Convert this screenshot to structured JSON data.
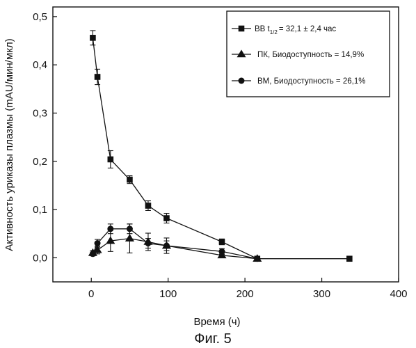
{
  "figure": {
    "caption": "Фиг. 5"
  },
  "chart_data": {
    "type": "line",
    "xlabel": "Время (ч)",
    "ylabel": "Активность уриказы плазмы (mAU/мин/мкл)",
    "xlim": [
      -50,
      400
    ],
    "ylim": [
      -0.05,
      0.52
    ],
    "xticks": [
      0,
      100,
      200,
      300,
      400
    ],
    "xtick_labels": [
      "0",
      "100",
      "200",
      "300",
      "400"
    ],
    "yticks": [
      0.0,
      0.1,
      0.2,
      0.3,
      0.4,
      0.5
    ],
    "ytick_labels": [
      "0,0",
      "0,1",
      "0,2",
      "0,3",
      "0,4",
      "0,5"
    ],
    "grid": false,
    "legend_position": "top-right",
    "series": [
      {
        "name": "ВВ t1/2 = 32,1 ± 2,4 час",
        "legend_main": "ВВ t",
        "legend_sub": "1/2",
        "legend_rest": "= 32,1 ± 2,4 час",
        "marker": "square",
        "x": [
          2,
          8,
          25,
          50,
          74,
          98,
          170,
          216,
          336
        ],
        "y": [
          0.456,
          0.375,
          0.204,
          0.162,
          0.108,
          0.082,
          0.033,
          -0.002,
          -0.002
        ],
        "err": [
          0.015,
          0.016,
          0.018,
          0.008,
          0.01,
          0.01,
          0.006,
          0.003,
          0.003
        ]
      },
      {
        "name": "ПК, Биодоступность = 14,9%",
        "marker": "triangle",
        "x": [
          2,
          8,
          25,
          50,
          74,
          98,
          170,
          216
        ],
        "y": [
          0.01,
          0.016,
          0.035,
          0.04,
          0.033,
          0.025,
          0.005,
          -0.002
        ],
        "err": [
          0.005,
          0.008,
          0.022,
          0.03,
          0.018,
          0.016,
          0.004,
          0.002
        ]
      },
      {
        "name": "ВМ, Биодоступность = 26,1%",
        "marker": "circle",
        "x": [
          2,
          8,
          25,
          50,
          74,
          98,
          170,
          216
        ],
        "y": [
          0.008,
          0.03,
          0.06,
          0.06,
          0.03,
          0.025,
          0.013,
          -0.002
        ],
        "err": [
          0.004,
          0.008,
          0.01,
          0.01,
          0.01,
          0.01,
          0.006,
          0.002
        ]
      }
    ]
  }
}
